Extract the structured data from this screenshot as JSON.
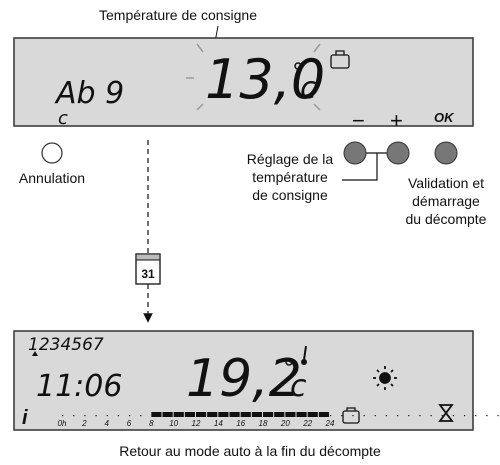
{
  "top_display": {
    "callout": "Température de consigne",
    "mode": "Ab 9",
    "sub": "c",
    "temperature": "13,0",
    "unit": "c"
  },
  "keys": {
    "minus": "−",
    "plus": "+",
    "ok": "OK"
  },
  "labels": {
    "cancel": "Annulation",
    "adjust": [
      "Réglage de la",
      "température",
      "de consigne"
    ],
    "validate": [
      "Validation et",
      "démarrage",
      "du décompte"
    ]
  },
  "calendar": "31",
  "bottom_display": {
    "days": "1234567",
    "time": "11:06",
    "temperature": "19,2",
    "unit": "c",
    "info": "i",
    "hours": [
      "0h",
      "2",
      "4",
      "6",
      "8",
      "10",
      "12",
      "14",
      "16",
      "18",
      "20",
      "22",
      "24"
    ]
  },
  "caption": "Retour au mode auto à la fin du décompte"
}
